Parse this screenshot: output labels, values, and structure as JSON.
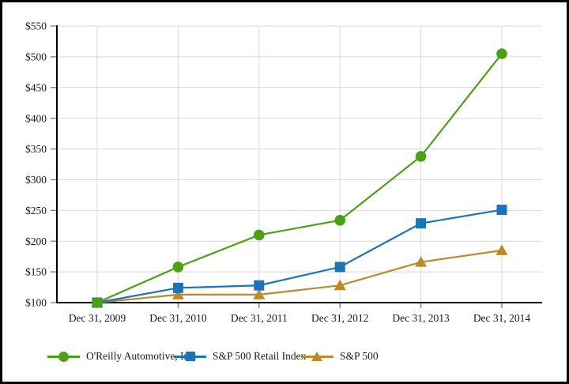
{
  "chart_data": {
    "type": "line",
    "title": "",
    "categories": [
      "Dec 31, 2009",
      "Dec 31, 2010",
      "Dec 31, 2011",
      "Dec 31, 2012",
      "Dec 31, 2013",
      "Dec 31, 2014"
    ],
    "series": [
      {
        "name": "O'Reilly Automotive, Inc.",
        "marker": "circle",
        "color": "#4ba112",
        "values": [
          100,
          158,
          210,
          234,
          338,
          505
        ]
      },
      {
        "name": "S&P 500 Retail Index",
        "marker": "square",
        "color": "#1b73b8",
        "values": [
          100,
          124,
          128,
          158,
          229,
          251
        ]
      },
      {
        "name": "S&P 500",
        "marker": "triangle",
        "color": "#bd8a28",
        "values": [
          100,
          113,
          113,
          128,
          166,
          185
        ]
      }
    ],
    "ylim": [
      100,
      550
    ],
    "y_tick_step": 50,
    "y_tick_labels": [
      "$100",
      "$150",
      "$200",
      "$250",
      "$300",
      "$350",
      "$400",
      "$450",
      "$500",
      "$550"
    ],
    "grid": true,
    "legend_position": "bottom",
    "style": {
      "gridline_color": "#d9d9d9",
      "spine_color": "#000000",
      "tick_color": "#808080",
      "label_color": "#1a1a1a",
      "background": "#ffffff",
      "frame_border": "#000000",
      "line_width": 2.2
    }
  }
}
